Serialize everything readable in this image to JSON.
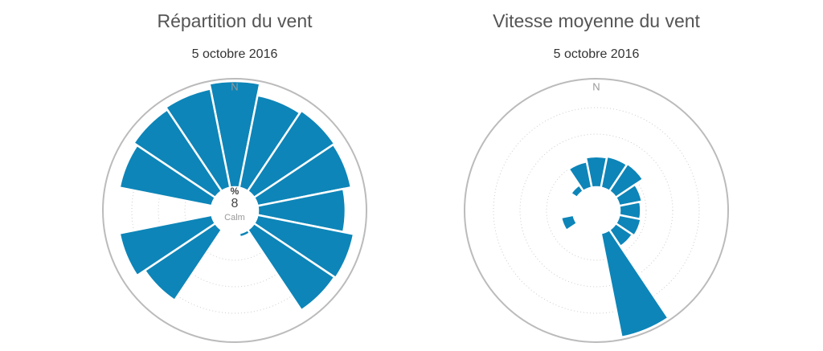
{
  "chart_data": [
    {
      "type": "polar-bar",
      "title": "Répartition du vent",
      "subtitle": "5 octobre 2016",
      "categories": [
        "N",
        null,
        null,
        null,
        null,
        null,
        null,
        null,
        null,
        null,
        null,
        null,
        null,
        null,
        null,
        null
      ],
      "values": [
        8,
        7.1,
        7.3,
        7.2,
        6.6,
        7.4,
        7.3,
        0.3,
        0,
        0,
        6.4,
        7.1,
        0,
        7.1,
        7.4,
        7.6
      ],
      "rlim": [
        0,
        8
      ],
      "color": "#0d85b8",
      "center_unit": "%",
      "center_value": 8,
      "center_text": "Calm"
    },
    {
      "type": "polar-bar",
      "title": "Vitesse moyenne du vent",
      "subtitle": "5 octobre 2016",
      "categories": [
        "N",
        null,
        null,
        null,
        null,
        null,
        null,
        null,
        null,
        null,
        null,
        null,
        null,
        null,
        null,
        null
      ],
      "values": [
        2.9,
        3.0,
        3.1,
        2.2,
        2.0,
        2.1,
        1.9,
        10,
        0,
        0,
        0,
        1.2,
        0,
        0,
        0.7,
        2.5
      ],
      "rlim": [
        0,
        10
      ],
      "color": "#0d85b8"
    }
  ]
}
